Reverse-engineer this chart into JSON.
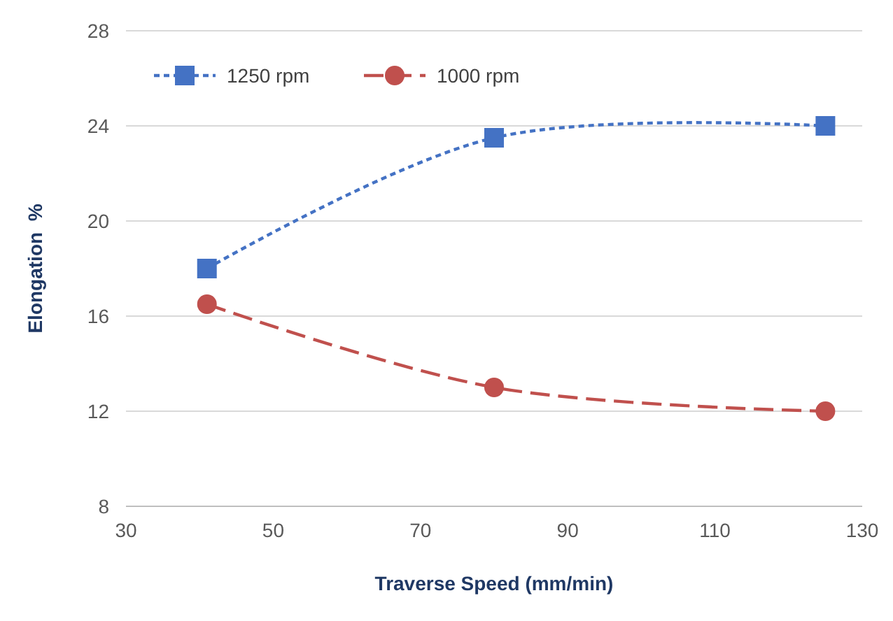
{
  "chart_data": {
    "type": "line",
    "xlabel": "Traverse Speed (mm/min)",
    "ylabel": "Elongation  %",
    "x": [
      41,
      80,
      125
    ],
    "series": [
      {
        "name": "1250 rpm",
        "color": "#4472c4",
        "values": [
          18,
          23.5,
          24
        ],
        "marker": "square",
        "line_style": "dotted"
      },
      {
        "name": "1000 rpm",
        "color": "#c0504d",
        "values": [
          16.5,
          13,
          12
        ],
        "marker": "circle",
        "line_style": "dashed"
      }
    ],
    "xlim": [
      30,
      130
    ],
    "xticks": [
      30,
      50,
      70,
      90,
      110,
      130
    ],
    "ylim": [
      8,
      28
    ],
    "yticks": [
      8,
      12,
      16,
      20,
      24,
      28
    ],
    "grid": "y",
    "legend": "top left"
  }
}
